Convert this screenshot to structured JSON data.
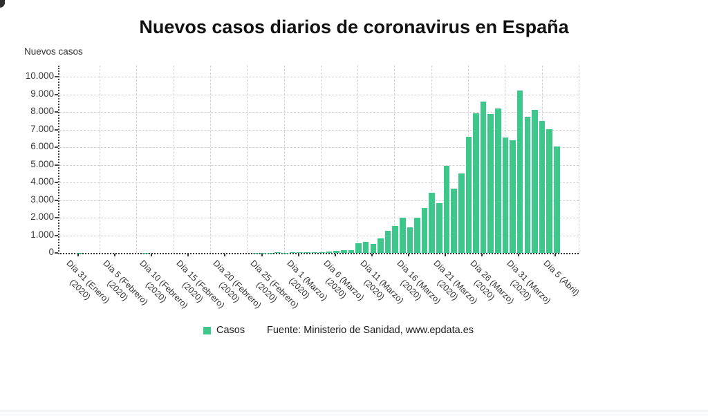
{
  "title": "Nuevos casos diarios de coronavirus en España",
  "y_axis_title": "Nuevos casos",
  "legend": {
    "label": "Casos"
  },
  "source_text": "Fuente: Ministerio de Sanidad, www.epdata.es",
  "colors": {
    "bar": "#3ec78a",
    "axis": "#333333",
    "grid": "#cfcfcf",
    "text": "#333333",
    "title": "#111111"
  },
  "chart_data": {
    "type": "bar",
    "title": "Nuevos casos diarios de coronavirus en España",
    "ylabel": "Nuevos casos",
    "ylim": [
      0,
      10000
    ],
    "grid": true,
    "legend_position": "bottom",
    "y_tick_labels": [
      "0",
      "1.000",
      "2.000",
      "3.000",
      "4.000",
      "5.000",
      "6.000",
      "7.000",
      "8.000",
      "9.000",
      "10.000"
    ],
    "x_tick_every": 5,
    "x_tick_labels": [
      [
        "Día 31 (Enero)",
        "(2020)"
      ],
      [
        "Día 5 (Febrero)",
        "(2020)"
      ],
      [
        "Día 10 (Febrero)",
        "(2020)"
      ],
      [
        "Día 15 (Febrero)",
        "(2020)"
      ],
      [
        "Día 20 (Febrero)",
        "(2020)"
      ],
      [
        "Día 25 (Febrero)",
        "(2020)"
      ],
      [
        "Día 1 (Marzo)",
        "(2020)"
      ],
      [
        "Día 6 (Marzo)",
        "(2020)"
      ],
      [
        "Día 11 (Marzo)",
        "(2020)"
      ],
      [
        "Día 16 (Marzo)",
        "(2020)"
      ],
      [
        "Día 21 (Marzo)",
        "(2020)"
      ],
      [
        "Día 26 (Marzo)",
        "(2020)"
      ],
      [
        "Día 31 (Marzo)",
        "(2020)"
      ],
      [
        "Día 5 (Abril)"
      ]
    ],
    "series": [
      {
        "name": "Casos",
        "color": "#3ec78a",
        "values": [
          1,
          0,
          0,
          0,
          0,
          0,
          0,
          0,
          0,
          1,
          0,
          0,
          0,
          0,
          0,
          0,
          0,
          0,
          0,
          0,
          0,
          0,
          0,
          0,
          3,
          6,
          13,
          25,
          19,
          45,
          39,
          36,
          37,
          57,
          60,
          137,
          141,
          174,
          557,
          615,
          501,
          825,
          1266,
          1522,
          2000,
          1438,
          1987,
          2538,
          3431,
          2833,
          4946,
          3646,
          4517,
          6584,
          7937,
          8578,
          7871,
          8189,
          6549,
          6398,
          9222,
          7719,
          8102,
          7472,
          7026,
          6023
        ]
      }
    ]
  }
}
